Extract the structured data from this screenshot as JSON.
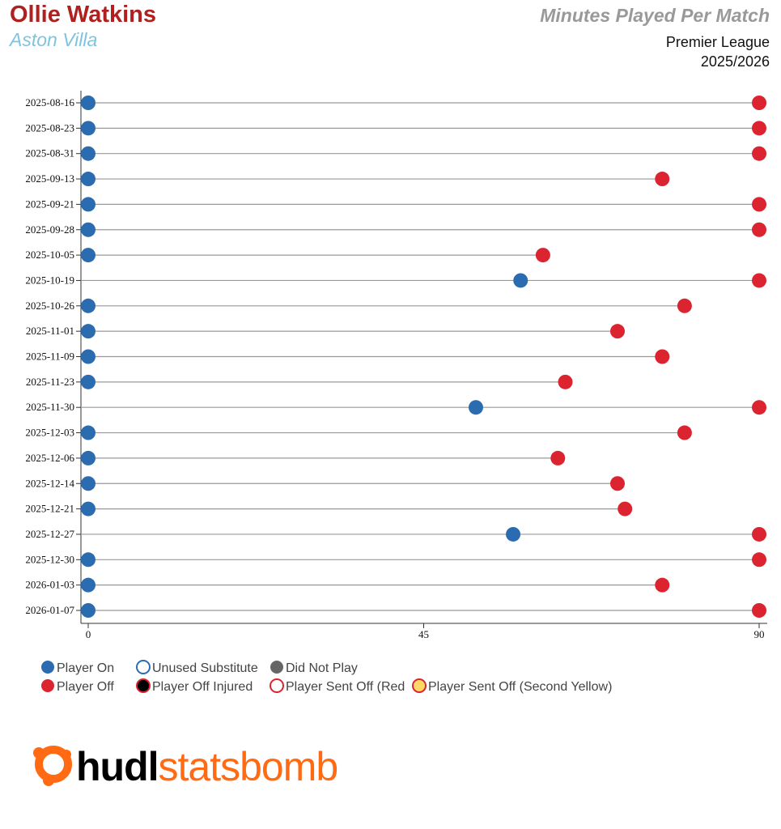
{
  "header": {
    "player": "Ollie Watkins",
    "team": "Aston Villa",
    "title": "Minutes Played Per Match",
    "competition": "Premier League",
    "season": "2025/2026"
  },
  "colors": {
    "on": "#2b6cb0",
    "off": "#dc2430",
    "line": "#999999",
    "player": "#b0201f",
    "team": "#7ec3df",
    "brand": "#ff6a13"
  },
  "chart_data": {
    "type": "dumbbell",
    "title": "Minutes Played Per Match",
    "xlabel": "",
    "ylabel": "",
    "xlim": [
      0,
      90
    ],
    "xticks": [
      "0",
      "45",
      "90"
    ],
    "categories": [
      "2025-08-16",
      "2025-08-23",
      "2025-08-31",
      "2025-09-13",
      "2025-09-21",
      "2025-09-28",
      "2025-10-05",
      "2025-10-19",
      "2025-10-26",
      "2025-11-01",
      "2025-11-09",
      "2025-11-23",
      "2025-11-30",
      "2025-12-03",
      "2025-12-06",
      "2025-12-14",
      "2025-12-21",
      "2025-12-27",
      "2025-12-30",
      "2026-01-03",
      "2026-01-07"
    ],
    "series": [
      {
        "name": "Player On",
        "values": [
          0,
          0,
          0,
          0,
          0,
          0,
          0,
          58,
          0,
          0,
          0,
          0,
          52,
          0,
          0,
          0,
          0,
          57,
          0,
          0,
          0
        ]
      },
      {
        "name": "Player Off",
        "values": [
          90,
          90,
          90,
          77,
          90,
          90,
          61,
          90,
          80,
          71,
          77,
          64,
          90,
          80,
          63,
          71,
          72,
          90,
          90,
          77,
          90
        ]
      }
    ],
    "legend": [
      {
        "label": "Player On",
        "style": "on"
      },
      {
        "label": "Unused Substitute",
        "style": "unused"
      },
      {
        "label": "Did Not Play",
        "style": "dnp"
      },
      {
        "label": "Player Off",
        "style": "off"
      },
      {
        "label": "Player Off Injured",
        "style": "injured"
      },
      {
        "label": "Player Sent Off (Red",
        "style": "red"
      },
      {
        "label": "Player Sent Off (Second Yellow)",
        "style": "yellow"
      }
    ],
    "legend_position": "bottom-left"
  },
  "logo": {
    "part1": "hudl",
    "part2": "statsbomb"
  }
}
